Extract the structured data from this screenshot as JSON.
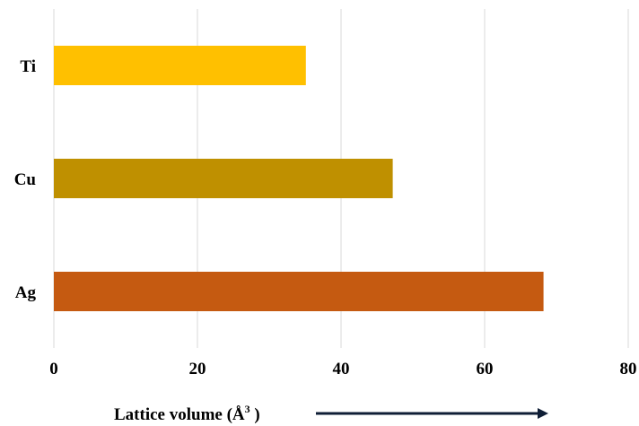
{
  "chart_data": {
    "type": "bar",
    "orientation": "horizontal",
    "categories": [
      "Ti",
      "Cu",
      "Ag"
    ],
    "values": [
      35.1,
      47.2,
      68.2
    ],
    "colors": [
      "#FFC000",
      "#BF9000",
      "#C55A11"
    ],
    "xlabel": "Lattice volume (Å",
    "xlabel_superscript": "3",
    "xlabel_close": " )",
    "xlim": [
      0,
      80
    ],
    "xticks": [
      0,
      20,
      40,
      60,
      80
    ],
    "grid": "vertical",
    "legend": "none",
    "arrow_color": "#0f1e36"
  }
}
